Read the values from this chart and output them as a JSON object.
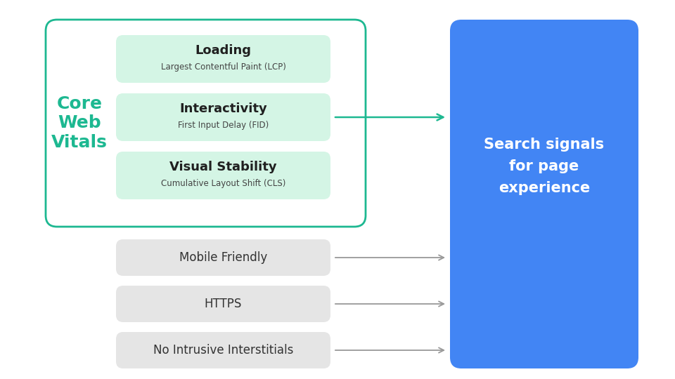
{
  "bg_color": "#ffffff",
  "core_web_vitals_label": "Core\nWeb\nVitals",
  "cwv_label_color": "#1db891",
  "cwv_box_border_color": "#1db891",
  "cwv_box_fill": "#ffffff",
  "green_box_fill": "#d4f5e5",
  "gray_box_fill": "#e5e5e5",
  "blue_rect_color": "#4285f4",
  "blue_rect_text": "Search signals\nfor page\nexperience",
  "blue_rect_text_color": "#ffffff",
  "arrow_green_color": "#1db891",
  "arrow_gray_color": "#999999",
  "green_items": [
    {
      "title": "Loading",
      "subtitle": "Largest Contentful Paint (LCP)"
    },
    {
      "title": "Interactivity",
      "subtitle": "First Input Delay (FID)"
    },
    {
      "title": "Visual Stability",
      "subtitle": "Cumulative Layout Shift (CLS)"
    }
  ],
  "gray_items": [
    "Mobile Friendly",
    "HTTPS",
    "No Intrusive Interstitials"
  ],
  "title_fontsize": 13,
  "subtitle_fontsize": 8.5,
  "gray_fontsize": 12,
  "cwv_fontsize": 18,
  "blue_text_fontsize": 15
}
